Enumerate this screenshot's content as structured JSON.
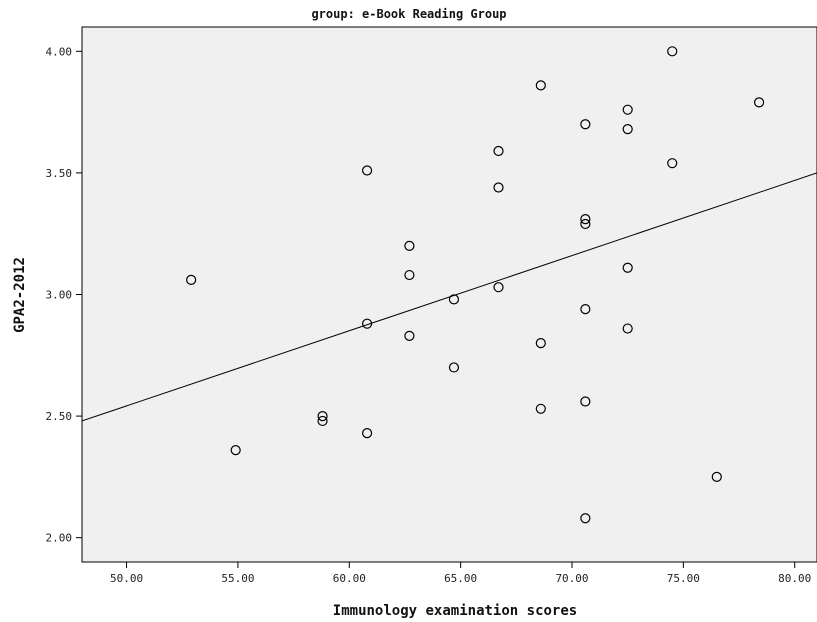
{
  "chart_data": {
    "type": "scatter",
    "title": "group: e-Book Reading Group",
    "xlabel": "Immunology examination scores",
    "ylabel": "GPA2-2012",
    "xlim": [
      48.0,
      81.0
    ],
    "ylim": [
      1.9,
      4.1
    ],
    "x_ticks": [
      "50.00",
      "55.00",
      "60.00",
      "65.00",
      "70.00",
      "75.00",
      "80.00"
    ],
    "y_ticks": [
      "2.00",
      "2.50",
      "3.00",
      "3.50",
      "4.00"
    ],
    "grid": false,
    "fit_line": {
      "x": [
        48.0,
        81.0
      ],
      "y": [
        2.48,
        3.5
      ]
    },
    "points": [
      {
        "x": 52.9,
        "y": 3.06
      },
      {
        "x": 54.9,
        "y": 2.36
      },
      {
        "x": 58.8,
        "y": 2.5
      },
      {
        "x": 58.8,
        "y": 2.48
      },
      {
        "x": 60.8,
        "y": 3.51
      },
      {
        "x": 60.8,
        "y": 2.88
      },
      {
        "x": 60.8,
        "y": 2.43
      },
      {
        "x": 62.7,
        "y": 3.2
      },
      {
        "x": 62.7,
        "y": 3.08
      },
      {
        "x": 62.7,
        "y": 2.83
      },
      {
        "x": 64.7,
        "y": 2.98
      },
      {
        "x": 64.7,
        "y": 2.7
      },
      {
        "x": 66.7,
        "y": 3.59
      },
      {
        "x": 66.7,
        "y": 3.44
      },
      {
        "x": 66.7,
        "y": 3.03
      },
      {
        "x": 68.6,
        "y": 3.86
      },
      {
        "x": 68.6,
        "y": 2.8
      },
      {
        "x": 68.6,
        "y": 2.53
      },
      {
        "x": 70.6,
        "y": 3.7
      },
      {
        "x": 70.6,
        "y": 3.31
      },
      {
        "x": 70.6,
        "y": 3.29
      },
      {
        "x": 70.6,
        "y": 2.94
      },
      {
        "x": 70.6,
        "y": 2.56
      },
      {
        "x": 70.6,
        "y": 2.08
      },
      {
        "x": 72.5,
        "y": 3.76
      },
      {
        "x": 72.5,
        "y": 3.68
      },
      {
        "x": 72.5,
        "y": 3.11
      },
      {
        "x": 72.5,
        "y": 2.86
      },
      {
        "x": 74.5,
        "y": 4.0
      },
      {
        "x": 74.5,
        "y": 3.54
      },
      {
        "x": 76.5,
        "y": 2.25
      },
      {
        "x": 78.4,
        "y": 3.79
      }
    ],
    "colors": {
      "plot_background": "#f0f0f0",
      "axis": "#000000",
      "marker": "#000000",
      "fit_line": "#000000"
    }
  }
}
